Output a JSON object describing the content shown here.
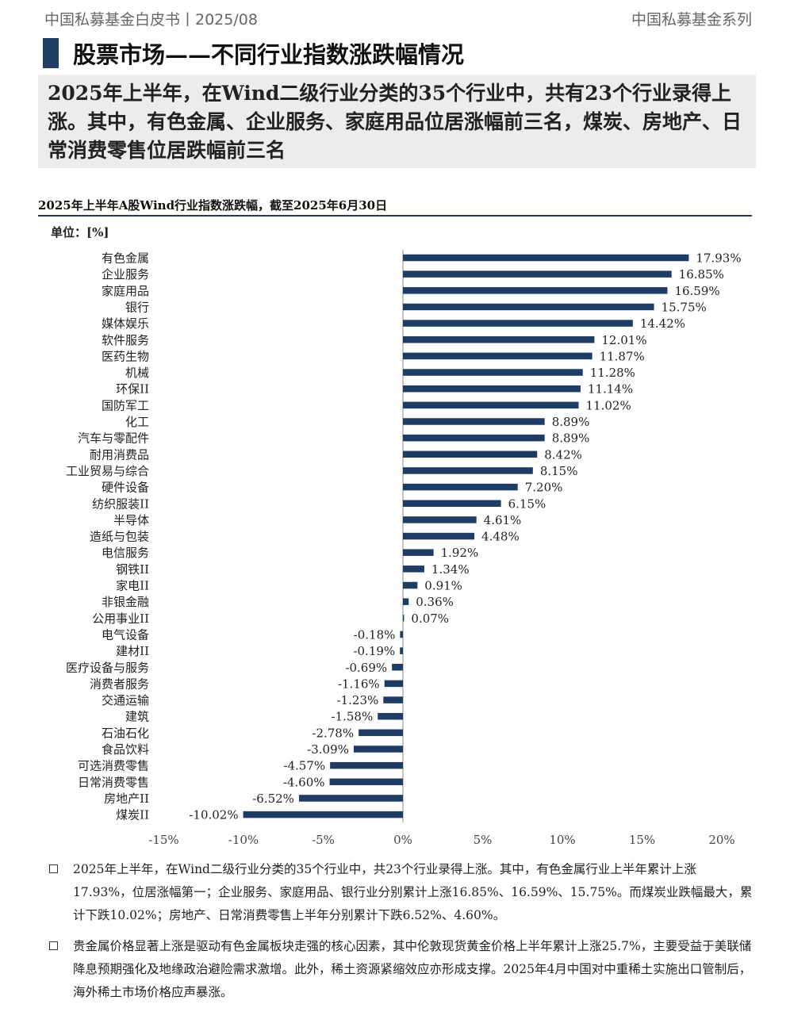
{
  "header": {
    "left": "中国私募基金白皮书丨2025/08",
    "right": "中国私募基金系列"
  },
  "title": "股票市场——不同行业指数涨跌幅情况",
  "summary": "2025年上半年，在Wind二级行业分类的35个行业中，共有23个行业录得上涨。其中，有色金属、企业服务、家庭用品位居涨幅前三名，煤炭、房地产、日常消费零售位居跌幅前三名",
  "chart_title": "2025年上半年A股Wind行业指数涨跌幅，截至2025年6月30日",
  "unit_label": "单位：[%]",
  "colors": {
    "bar": "#1f3d64",
    "accent": "#1f3d64"
  },
  "chart_data": {
    "type": "bar",
    "orientation": "horizontal",
    "title": "2025年上半年A股Wind行业指数涨跌幅，截至2025年6月30日",
    "unit": "%",
    "xlim": [
      -15,
      20
    ],
    "ticks": [
      -15,
      -10,
      -5,
      0,
      5,
      10,
      15,
      20
    ],
    "tick_labels": [
      "-15%",
      "-10%",
      "-5%",
      "0%",
      "5%",
      "10%",
      "15%",
      "20%"
    ],
    "categories": [
      "有色金属",
      "企业服务",
      "家庭用品",
      "银行",
      "媒体娱乐",
      "软件服务",
      "医药生物",
      "机械",
      "环保II",
      "国防军工",
      "化工",
      "汽车与零配件",
      "耐用消费品",
      "工业贸易与综合",
      "硬件设备",
      "纺织服装II",
      "半导体",
      "造纸与包装",
      "电信服务",
      "钢铁II",
      "家电II",
      "非银金融",
      "公用事业II",
      "电气设备",
      "建材II",
      "医疗设备与服务",
      "消费者服务",
      "交通运输",
      "建筑",
      "石油石化",
      "食品饮料",
      "可选消费零售",
      "日常消费零售",
      "房地产II",
      "煤炭II"
    ],
    "values": [
      17.93,
      16.85,
      16.59,
      15.75,
      14.42,
      12.01,
      11.87,
      11.28,
      11.14,
      11.02,
      8.89,
      8.89,
      8.42,
      8.15,
      7.2,
      6.15,
      4.61,
      4.48,
      1.92,
      1.34,
      0.91,
      0.36,
      0.07,
      -0.18,
      -0.19,
      -0.69,
      -1.16,
      -1.23,
      -1.58,
      -2.78,
      -3.09,
      -4.57,
      -4.6,
      -6.52,
      -10.02
    ],
    "value_labels": [
      "17.93%",
      "16.85%",
      "16.59%",
      "15.75%",
      "14.42%",
      "12.01%",
      "11.87%",
      "11.28%",
      "11.14%",
      "11.02%",
      "8.89%",
      "8.89%",
      "8.42%",
      "8.15%",
      "7.20%",
      "6.15%",
      "4.61%",
      "4.48%",
      "1.92%",
      "1.34%",
      "0.91%",
      "0.36%",
      "0.07%",
      "-0.18%",
      "-0.19%",
      "-0.69%",
      "-1.16%",
      "-1.23%",
      "-1.58%",
      "-2.78%",
      "-3.09%",
      "-4.57%",
      "-4.60%",
      "-6.52%",
      "-10.02%"
    ],
    "grid": false,
    "legend": "none"
  },
  "bullets": [
    "2025年上半年，在Wind二级行业分类的35个行业中，共23个行业录得上涨。其中，有色金属行业上半年累计上涨17.93%，位居涨幅第一；企业服务、家庭用品、银行业分别累计上涨16.85%、16.59%、15.75%。而煤炭业跌幅最大，累计下跌10.02%；房地产、日常消费零售上半年分别累计下跌6.52%、4.60%。",
    "贵金属价格显著上涨是驱动有色金属板块走强的核心因素，其中伦敦现货黄金价格上半年累计上涨25.7%，主要受益于美联储降息预期强化及地缘政治避险需求激增。此外，稀土资源紧缩效应亦形成支撑。2025年4月中国对中重稀土实施出口管制后，海外稀土市场价格应声暴涨。"
  ]
}
